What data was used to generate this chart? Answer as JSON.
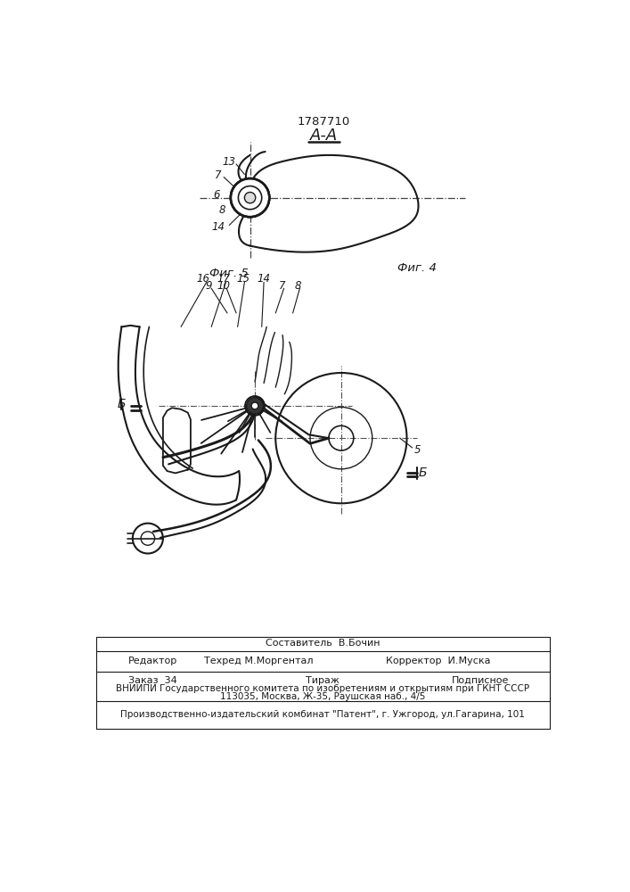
{
  "patent_number": "1787710",
  "section_label": "А-А",
  "fig4_label": "Фиг. 4",
  "fig5_label": "Фиг. 5",
  "bg_color": "#ffffff",
  "line_color": "#1a1a1a",
  "footer": {
    "compiler": "Составитель  В.Бочин",
    "editor_label": "Редактор",
    "techred": "Техред М.Моргентал",
    "corrector": "Корректор  И.Муска",
    "order": "Заказ  34",
    "tirazh": "Тираж",
    "podpisnoe": "Подписное",
    "vniiipi": "ВНИИПИ Государственного комитета по изобретениям и открытиям при ГКНТ СССР",
    "address": "113035, Москва, Ж-35, Раушская наб., 4/5",
    "production": "Производственно-издательский комбинат \"Патент\", г. Ужгород, ул.Гагарина, 101"
  }
}
